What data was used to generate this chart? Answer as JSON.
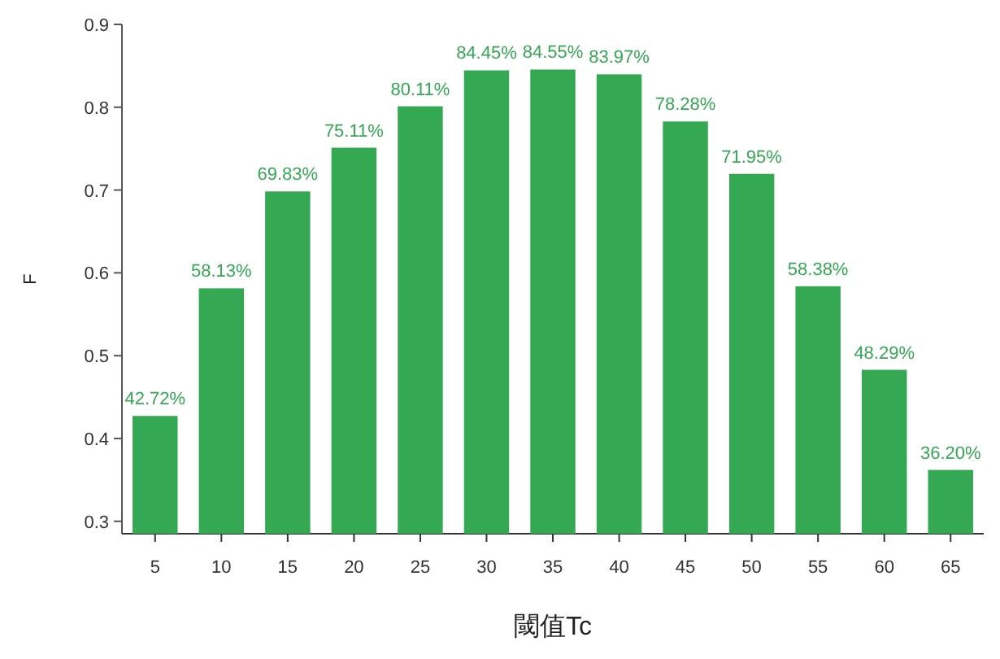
{
  "chart_data": {
    "type": "bar",
    "xlabel": "閾值Tc",
    "ylabel": "F",
    "categories": [
      "5",
      "10",
      "15",
      "20",
      "25",
      "30",
      "35",
      "40",
      "45",
      "50",
      "55",
      "60",
      "65"
    ],
    "values": [
      0.4272,
      0.5813,
      0.6983,
      0.7511,
      0.8011,
      0.8445,
      0.8455,
      0.8397,
      0.7828,
      0.7195,
      0.5838,
      0.4829,
      0.362
    ],
    "value_labels": [
      "42.72%",
      "58.13%",
      "69.83%",
      "75.11%",
      "80.11%",
      "84.45%",
      "84.55%",
      "83.97%",
      "78.28%",
      "71.95%",
      "58.38%",
      "48.29%",
      "36.20%"
    ],
    "color": "#34a853",
    "ylim": [
      0.285,
      0.9
    ],
    "yticks": [
      0.3,
      0.4,
      0.5,
      0.6,
      0.7,
      0.8,
      0.9
    ]
  }
}
